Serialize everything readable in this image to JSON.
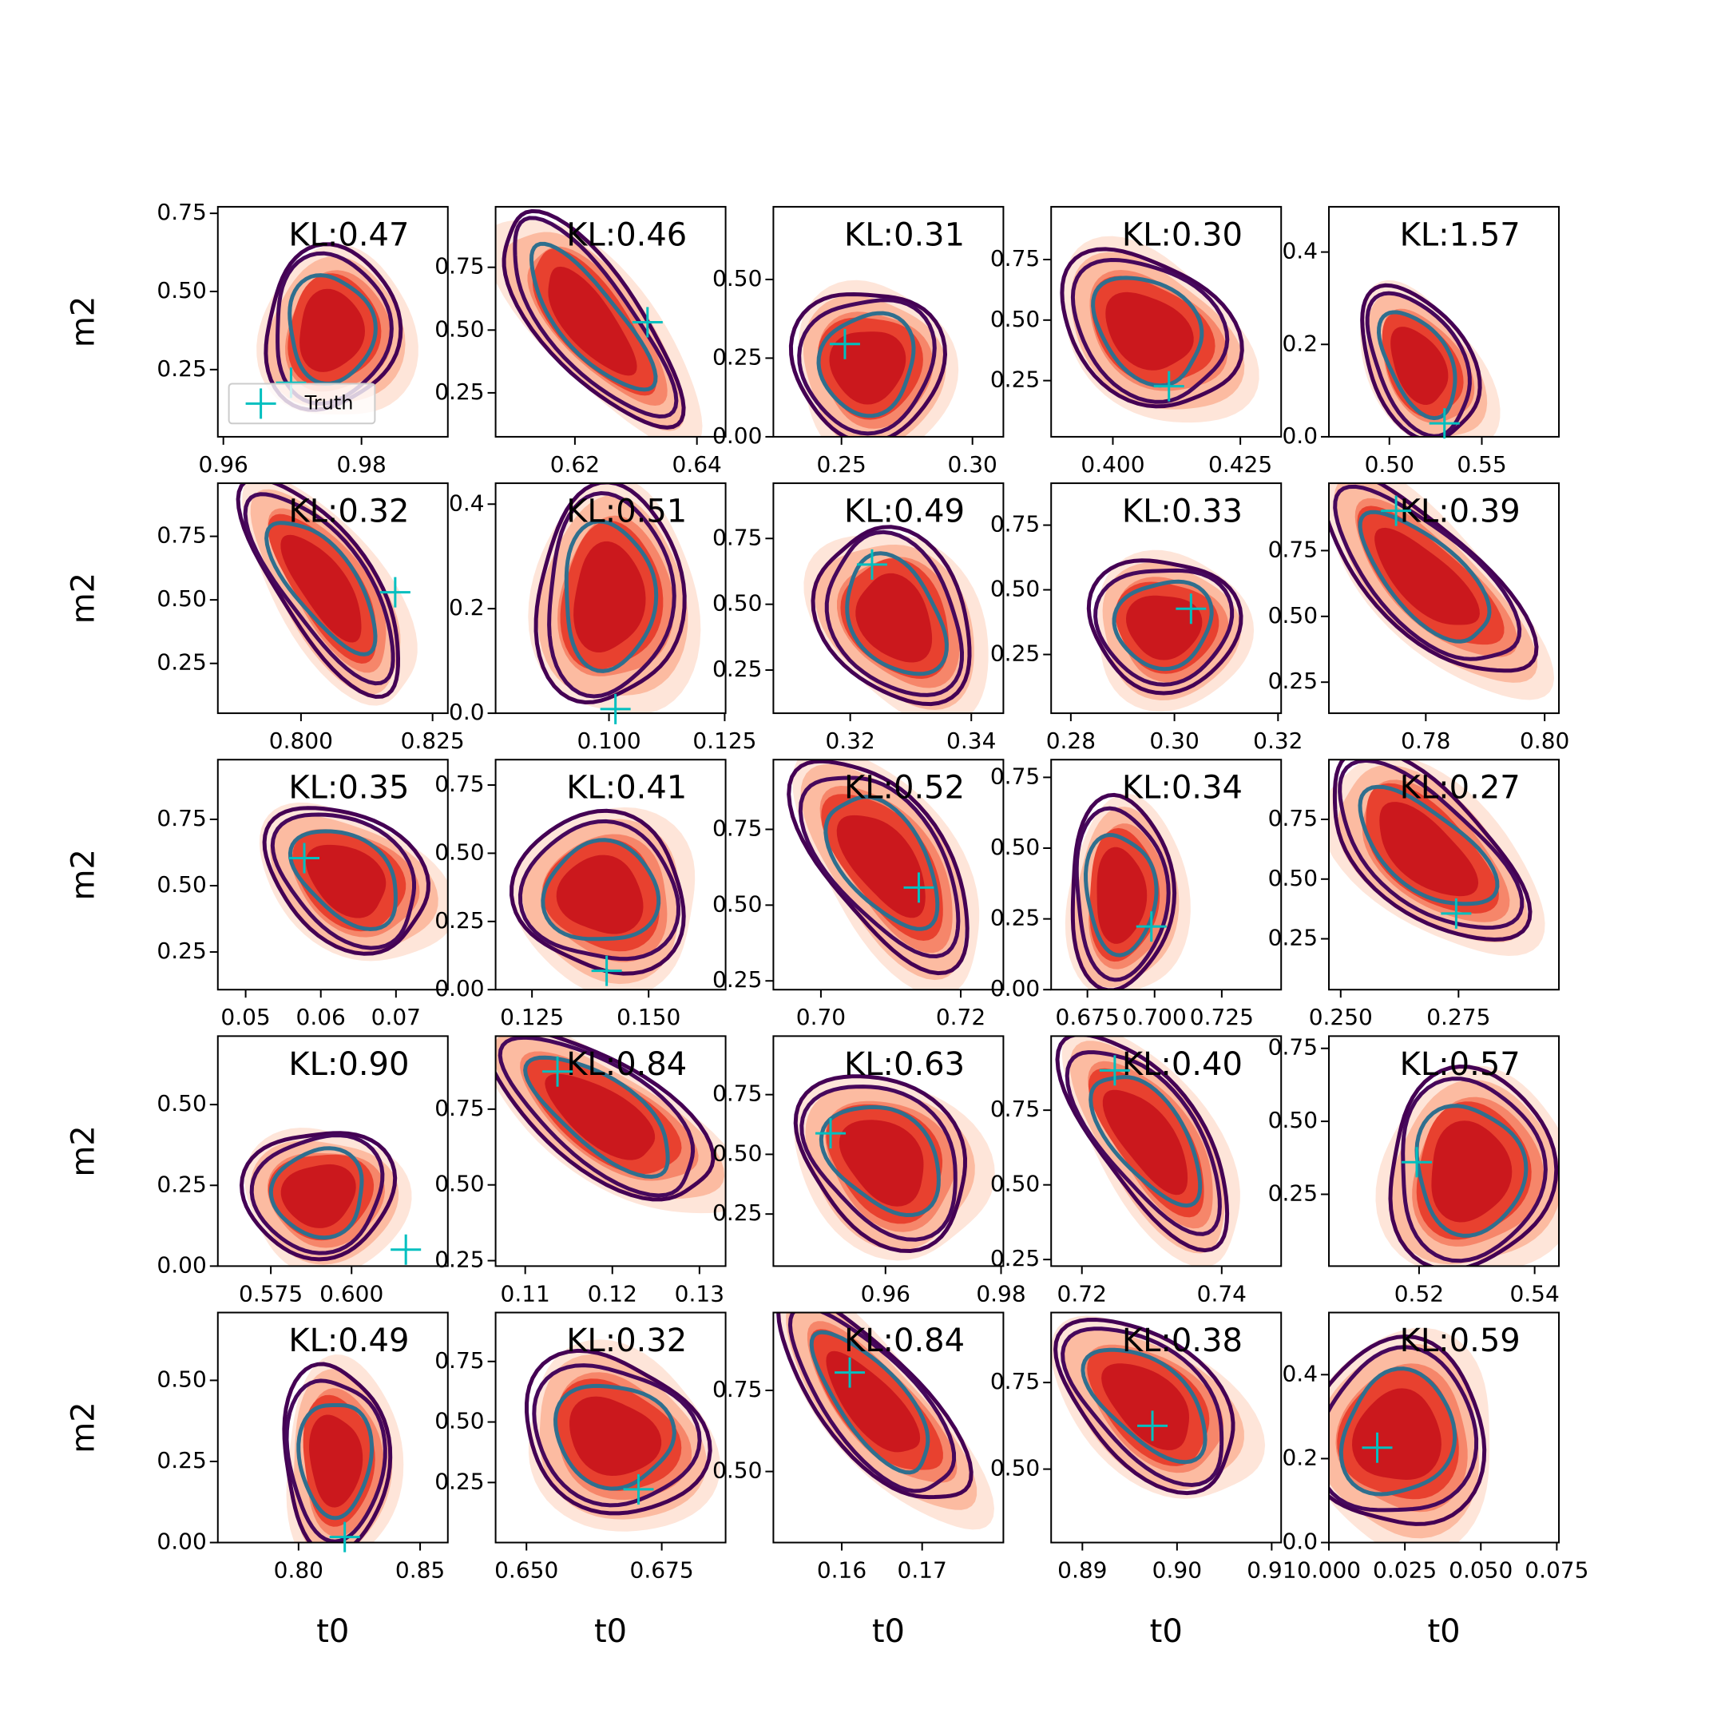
{
  "chart_data": [
    {
      "type": "contour",
      "title": "KL:0.47",
      "ylabel": "m2",
      "legend": "lower left",
      "xlim": [
        0.9592,
        0.9925
      ],
      "xticks": [
        0.96,
        0.98
      ],
      "ylim": [
        0.035,
        0.771
      ],
      "yticks": [
        0.25,
        {
          "value": 0.5,
          "label": "0.50"
        },
        0.75
      ],
      "series": [
        {
          "name": "Truth",
          "color": "#00bfbf",
          "x": [
            0.9698
          ],
          "values": [
            0.208
          ]
        }
      ]
    },
    {
      "type": "contour",
      "title": "KL:0.46",
      "xlim": [
        0.607,
        0.6447
      ],
      "xticks": [
        0.62,
        0.64
      ],
      "ylim": [
        0.075,
        0.991
      ],
      "yticks": [
        0.25,
        {
          "value": 0.5,
          "label": "0.50"
        },
        0.75
      ],
      "series": [
        {
          "color": "#00bfbf",
          "x": [
            0.6319
          ],
          "values": [
            0.531
          ]
        }
      ]
    },
    {
      "type": "contour",
      "title": "KL:0.31",
      "xlim": [
        0.224,
        0.3118
      ],
      "xticks": [
        0.25,
        {
          "value": 0.3,
          "label": "0.30"
        }
      ],
      "ylim": [
        0,
        0.731
      ],
      "yticks": [
        {
          "value": 0,
          "label": "0.00"
        },
        0.25,
        {
          "value": 0.5,
          "label": "0.50"
        }
      ],
      "series": [
        {
          "color": "#00bfbf",
          "x": [
            0.2513
          ],
          "values": [
            0.295
          ]
        }
      ]
    },
    {
      "type": "contour",
      "title": "KL:0.30",
      "xlim": [
        0.3879,
        0.433
      ],
      "xticks": [
        {
          "value": 0.4,
          "label": "0.400"
        },
        0.425
      ],
      "ylim": [
        0.018,
        0.968
      ],
      "yticks": [
        0.25,
        {
          "value": 0.5,
          "label": "0.50"
        },
        0.75
      ],
      "series": [
        {
          "color": "#00bfbf",
          "x": [
            0.411
          ],
          "values": [
            0.227
          ]
        }
      ]
    },
    {
      "type": "contour",
      "title": "KL:1.57",
      "xlim": [
        0.4673,
        0.5917
      ],
      "xticks": [
        {
          "value": 0.5,
          "label": "0.50"
        },
        0.55
      ],
      "ylim": [
        0,
        0.498
      ],
      "yticks": [
        {
          "value": 0,
          "label": "0.0"
        },
        0.2,
        0.4
      ],
      "series": [
        {
          "color": "#00bfbf",
          "x": [
            0.5298
          ],
          "values": [
            0.029
          ]
        }
      ]
    },
    {
      "type": "contour",
      "title": "KL:0.32",
      "ylabel": "m2",
      "xlim": [
        0.7842,
        0.8279
      ],
      "xticks": [
        {
          "value": 0.8,
          "label": "0.800"
        },
        0.825
      ],
      "ylim": [
        0.054,
        0.959
      ],
      "yticks": [
        0.25,
        {
          "value": 0.5,
          "label": "0.50"
        },
        0.75
      ],
      "series": [
        {
          "color": "#00bfbf",
          "x": [
            0.8179
          ],
          "values": [
            0.53
          ]
        }
      ]
    },
    {
      "type": "contour",
      "title": "KL:0.51",
      "xlim": [
        0.0755,
        0.1252
      ],
      "xticks": [
        {
          "value": 0.1,
          "label": "0.100"
        },
        0.125
      ],
      "ylim": [
        0,
        0.44
      ],
      "yticks": [
        {
          "value": 0,
          "label": "0.0"
        },
        0.2,
        0.4
      ],
      "series": [
        {
          "color": "#00bfbf",
          "x": [
            0.1014
          ],
          "values": [
            0.008
          ]
        }
      ]
    },
    {
      "type": "contour",
      "title": "KL:0.49",
      "xlim": [
        0.3073,
        0.3453
      ],
      "xticks": [
        0.32,
        0.34
      ],
      "ylim": [
        0.086,
        0.96
      ],
      "yticks": [
        0.25,
        {
          "value": 0.5,
          "label": "0.50"
        },
        0.75
      ],
      "series": [
        {
          "color": "#00bfbf",
          "x": [
            0.3236
          ],
          "values": [
            0.651
          ]
        }
      ]
    },
    {
      "type": "contour",
      "title": "KL:0.33",
      "xlim": [
        0.2762,
        0.3206
      ],
      "xticks": [
        0.28,
        {
          "value": 0.3,
          "label": "0.30"
        },
        0.32
      ],
      "ylim": [
        0.023,
        0.912
      ],
      "yticks": [
        0.25,
        {
          "value": 0.5,
          "label": "0.50"
        },
        0.75
      ],
      "series": [
        {
          "color": "#00bfbf",
          "x": [
            0.3032
          ],
          "values": [
            0.427
          ]
        }
      ]
    },
    {
      "type": "contour",
      "title": "KL:0.39",
      "xlim": [
        0.7637,
        0.8024
      ],
      "xticks": [
        0.78,
        {
          "value": 0.8,
          "label": "0.80"
        }
      ],
      "ylim": [
        0.132,
        1.006
      ],
      "yticks": [
        0.25,
        {
          "value": 0.5,
          "label": "0.50"
        },
        0.75
      ],
      "series": [
        {
          "color": "#00bfbf",
          "x": [
            0.775
          ],
          "values": [
            0.901
          ]
        }
      ]
    },
    {
      "type": "contour",
      "title": "KL:0.35",
      "ylabel": "m2",
      "xlim": [
        0.0463,
        0.0769
      ],
      "xticks": [
        0.05,
        0.06,
        0.07
      ],
      "ylim": [
        0.108,
        0.975
      ],
      "yticks": [
        0.25,
        {
          "value": 0.5,
          "label": "0.50"
        },
        0.75
      ],
      "series": [
        {
          "color": "#00bfbf",
          "x": [
            0.0578
          ],
          "values": [
            0.604
          ]
        }
      ]
    },
    {
      "type": "contour",
      "title": "KL:0.41",
      "xlim": [
        0.1172,
        0.1665
      ],
      "xticks": [
        0.125,
        {
          "value": 0.15,
          "label": "0.150"
        }
      ],
      "ylim": [
        0,
        0.843
      ],
      "yticks": [
        {
          "value": 0,
          "label": "0.00"
        },
        0.25,
        {
          "value": 0.5,
          "label": "0.50"
        },
        0.75
      ],
      "series": [
        {
          "color": "#00bfbf",
          "x": [
            0.141
          ],
          "values": [
            0.069
          ]
        }
      ]
    },
    {
      "type": "contour",
      "title": "KL:0.52",
      "xlim": [
        0.6932,
        0.7261
      ],
      "xticks": [
        {
          "value": 0.7,
          "label": "0.70"
        },
        0.72
      ],
      "ylim": [
        0.221,
        0.98
      ],
      "yticks": [
        0.25,
        {
          "value": 0.5,
          "label": "0.50"
        },
        0.75
      ],
      "series": [
        {
          "color": "#00bfbf",
          "x": [
            0.714
          ],
          "values": [
            0.558
          ]
        }
      ]
    },
    {
      "type": "contour",
      "title": "KL:0.34",
      "xlim": [
        0.6615,
        0.7471
      ],
      "xticks": [
        0.675,
        {
          "value": 0.7,
          "label": "0.700"
        },
        0.725
      ],
      "ylim": [
        0,
        0.8125
      ],
      "yticks": [
        {
          "value": 0,
          "label": "0.00"
        },
        0.25,
        {
          "value": 0.5,
          "label": "0.50"
        },
        0.75
      ],
      "series": [
        {
          "color": "#00bfbf",
          "x": [
            0.6988
          ],
          "values": [
            0.223
          ]
        }
      ]
    },
    {
      "type": "contour",
      "title": "KL:0.27",
      "xlim": [
        0.2475,
        0.2963
      ],
      "xticks": [
        {
          "value": 0.25,
          "label": "0.250"
        },
        0.275
      ],
      "ylim": [
        0.037,
        1.0
      ],
      "yticks": [
        0.25,
        {
          "value": 0.5,
          "label": "0.50"
        },
        0.75
      ],
      "series": [
        {
          "color": "#00bfbf",
          "x": [
            0.2745
          ],
          "values": [
            0.356
          ]
        }
      ]
    },
    {
      "type": "contour",
      "title": "KL:0.90",
      "ylabel": "m2",
      "xlim": [
        0.5586,
        0.6298
      ],
      "xticks": [
        0.575,
        {
          "value": 0.6,
          "label": "0.600"
        }
      ],
      "ylim": [
        0,
        0.712
      ],
      "yticks": [
        {
          "value": 0,
          "label": "0.00"
        },
        0.25,
        {
          "value": 0.5,
          "label": "0.50"
        }
      ],
      "series": [
        {
          "color": "#00bfbf",
          "x": [
            0.6168
          ],
          "values": [
            0.051
          ]
        }
      ]
    },
    {
      "type": "contour",
      "title": "KL:0.84",
      "xlim": [
        0.1066,
        0.133
      ],
      "xticks": [
        0.11,
        0.12,
        0.13
      ],
      "ylim": [
        0.232,
        0.991
      ],
      "yticks": [
        0.25,
        {
          "value": 0.5,
          "label": "0.50"
        },
        0.75
      ],
      "series": [
        {
          "color": "#00bfbf",
          "x": [
            0.1137
          ],
          "values": [
            0.874
          ]
        }
      ]
    },
    {
      "type": "contour",
      "title": "KL:0.63",
      "xlim": [
        0.9406,
        0.9804
      ],
      "xticks": [
        0.96,
        0.98
      ],
      "ylim": [
        0.032,
        0.995
      ],
      "yticks": [
        0.25,
        {
          "value": 0.5,
          "label": "0.50"
        },
        0.75
      ],
      "series": [
        {
          "color": "#00bfbf",
          "x": [
            0.9505
          ],
          "values": [
            0.588
          ]
        }
      ]
    },
    {
      "type": "contour",
      "title": "KL:0.40",
      "xlim": [
        0.7156,
        0.7485
      ],
      "xticks": [
        0.72,
        0.74
      ],
      "ylim": [
        0.228,
        0.998
      ],
      "yticks": [
        0.25,
        {
          "value": 0.5,
          "label": "0.50"
        },
        0.75
      ],
      "series": [
        {
          "color": "#00bfbf",
          "x": [
            0.7247
          ],
          "values": [
            0.883
          ]
        }
      ]
    },
    {
      "type": "contour",
      "title": "KL:0.57",
      "xlim": [
        0.5044,
        0.5442
      ],
      "xticks": [
        0.52,
        0.54
      ],
      "ylim": [
        0.004,
        0.792
      ],
      "yticks": [
        0.25,
        {
          "value": 0.5,
          "label": "0.50"
        },
        0.75
      ],
      "series": [
        {
          "color": "#00bfbf",
          "x": [
            0.5196
          ],
          "values": [
            0.36
          ]
        }
      ]
    },
    {
      "type": "contour",
      "title": "KL:0.49",
      "xlabel": "t0",
      "ylabel": "m2",
      "xlim": [
        0.7668,
        0.8614
      ],
      "xticks": [
        {
          "value": 0.8,
          "label": "0.80"
        },
        0.85
      ],
      "ylim": [
        0,
        0.709
      ],
      "yticks": [
        {
          "value": 0,
          "label": "0.00"
        },
        0.25,
        {
          "value": 0.5,
          "label": "0.50"
        }
      ],
      "series": [
        {
          "color": "#00bfbf",
          "x": [
            0.819
          ],
          "values": [
            0.017
          ]
        }
      ]
    },
    {
      "type": "contour",
      "title": "KL:0.32",
      "xlabel": "t0",
      "xlim": [
        0.6443,
        0.6868
      ],
      "xticks": [
        {
          "value": 0.65,
          "label": "0.650"
        },
        0.675
      ],
      "ylim": [
        0.002,
        0.952
      ],
      "yticks": [
        0.25,
        {
          "value": 0.5,
          "label": "0.50"
        },
        0.75
      ],
      "series": [
        {
          "color": "#00bfbf",
          "x": [
            0.6707
          ],
          "values": [
            0.222
          ]
        }
      ]
    },
    {
      "type": "contour",
      "title": "KL:0.84",
      "xlabel": "t0",
      "xlim": [
        0.1515,
        0.1801
      ],
      "xticks": [
        0.16,
        0.17
      ],
      "ylim": [
        0.281,
        0.99
      ],
      "yticks": [
        {
          "value": 0.5,
          "label": "0.50"
        },
        0.75
      ],
      "series": [
        {
          "color": "#00bfbf",
          "x": [
            0.161
          ],
          "values": [
            0.805
          ]
        }
      ]
    },
    {
      "type": "contour",
      "title": "KL:0.38",
      "xlabel": "t0",
      "xlim": [
        0.8867,
        0.911
      ],
      "xticks": [
        0.89,
        {
          "value": 0.9,
          "label": "0.90"
        },
        0.91
      ],
      "ylim": [
        0.288,
        0.952
      ],
      "yticks": [
        {
          "value": 0.5,
          "label": "0.50"
        },
        0.75
      ],
      "series": [
        {
          "color": "#00bfbf",
          "x": [
            0.8974
          ],
          "values": [
            0.625
          ]
        }
      ]
    },
    {
      "type": "contour",
      "title": "KL:0.59",
      "xlabel": "t0",
      "xlim": [
        0,
        0.0757
      ],
      "xticks": [
        {
          "value": 0,
          "label": "0.000"
        },
        0.025,
        {
          "value": 0.05,
          "label": "0.050"
        },
        0.075
      ],
      "ylim": [
        0,
        0.548
      ],
      "yticks": [
        {
          "value": 0,
          "label": "0.0"
        },
        0.2,
        0.4
      ],
      "series": [
        {
          "color": "#00bfbf",
          "x": [
            0.0159
          ],
          "values": [
            0.226
          ]
        }
      ]
    }
  ]
}
